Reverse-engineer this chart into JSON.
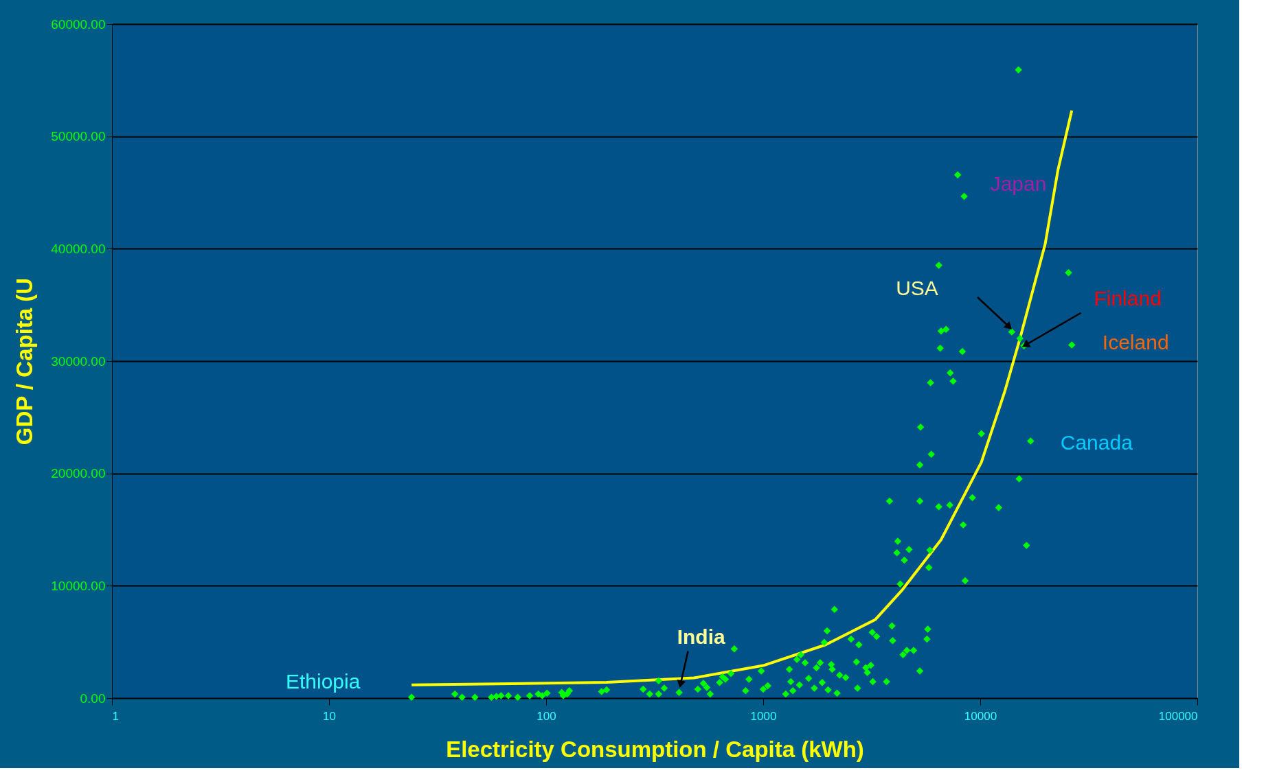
{
  "chart_data": {
    "type": "scatter",
    "xlabel": "Electricity Consumption / Capita (kWh)",
    "ylabel": "GDP / Capita (U",
    "log": "x",
    "xlim": [
      1,
      100000
    ],
    "xticks": [
      1,
      10,
      100,
      1000,
      10000,
      100000
    ],
    "ylim": [
      0,
      60000
    ],
    "yticks": [
      {
        "value": 0,
        "label": "0.00"
      },
      {
        "value": 10000,
        "label": "10000.00"
      },
      {
        "value": 20000,
        "label": "20000.00"
      },
      {
        "value": 30000,
        "label": "30000.00"
      },
      {
        "value": 40000,
        "label": "40000.00"
      },
      {
        "value": 50000,
        "label": "50000.00"
      },
      {
        "value": 60000,
        "label": "60000.00"
      }
    ],
    "grid": "y",
    "series": [
      {
        "color": "#00ff00",
        "marker": "diamond",
        "x": [
          15000,
          7870,
          8430,
          6440,
          25500,
          13970,
          15240,
          15900,
          26400,
          6600,
          6960,
          6540,
          8270,
          7270,
          7500,
          5900,
          10120,
          5310,
          17060,
          5270,
          5950,
          15110,
          3820,
          5270,
          6440,
          7240,
          9200,
          12160,
          8350,
          4170,
          4130,
          4700,
          5860,
          4470,
          5800,
          16330,
          8520,
          4280,
          2130,
          736,
          1970,
          3920,
          5730,
          5680,
          1910,
          2540,
          2760,
          3180,
          3330,
          3950,
          4590,
          4930,
          4410,
          5270,
          2690,
          2970,
          3130,
          3020,
          3200,
          3700,
          2720,
          2080,
          2400,
          2250,
          1830,
          1760,
          1870,
          1990,
          2190,
          2060,
          1490,
          1430,
          1560,
          1320,
          1340,
          1470,
          1620,
          1720,
          1370,
          1270,
          980,
          1050,
          1000,
          830,
          860,
          670,
          710,
          650,
          630,
          570,
          530,
          550,
          500,
          410,
          350,
          330,
          330,
          300,
          280,
          190,
          180,
          128,
          125,
          120,
          118,
          101,
          96,
          92,
          84,
          74,
          67,
          62,
          59,
          56,
          47,
          41,
          38,
          24
        ],
        "values": [
          55920,
          46570,
          44660,
          38520,
          37870,
          32600,
          32020,
          31360,
          31430,
          32680,
          32820,
          31140,
          30850,
          28950,
          28220,
          28070,
          23540,
          24120,
          22880,
          20760,
          21710,
          19520,
          17540,
          17540,
          17030,
          17180,
          17840,
          16960,
          15420,
          13960,
          12940,
          13230,
          13160,
          12280,
          11620,
          13600,
          10450,
          10160,
          7890,
          4390,
          5990,
          6430,
          6140,
          5260,
          4970,
          5260,
          4750,
          5850,
          5480,
          5120,
          4240,
          4240,
          3870,
          2410,
          3220,
          2700,
          2920,
          2270,
          1460,
          1460,
          880,
          2560,
          1830,
          2050,
          3140,
          2700,
          1390,
          730,
          440,
          3000,
          3870,
          3440,
          3140,
          2560,
          1460,
          1170,
          1750,
          880,
          660,
          370,
          2410,
          1100,
          800,
          660,
          1680,
          1680,
          2190,
          1900,
          1390,
          370,
          1320,
          950,
          800,
          510,
          880,
          370,
          1540,
          370,
          800,
          730,
          580,
          660,
          370,
          220,
          510,
          440,
          220,
          370,
          220,
          70,
          220,
          220,
          150,
          70,
          70,
          70,
          370,
          70
        ]
      },
      {
        "type": "line",
        "color": "#ffff00",
        "marker": "none",
        "line_style": "solid",
        "x": [
          24,
          190,
          480,
          1000,
          1940,
          3290,
          4380,
          6600,
          10120,
          12970,
          15240,
          19900,
          22800,
          26400
        ],
        "values": [
          1170,
          1400,
          1800,
          2900,
          4750,
          7000,
          9650,
          14100,
          21000,
          27300,
          32000,
          40400,
          47000,
          52300
        ]
      }
    ],
    "annotations": [
      {
        "text": "Japan",
        "x": 8430,
        "y": 44660
      },
      "USA",
      {
        "text": "Finland",
        "x": 15900,
        "y": 31360
      },
      {
        "text": "Iceland",
        "x": 26400,
        "y": 31430
      },
      {
        "text": "Canada",
        "x": 17060,
        "y": 22880
      },
      {
        "text": "Ethiopia",
        "x": 24,
        "y": 70
      },
      {
        "text": "India",
        "x": 410,
        "y": 510
      }
    ]
  }
}
